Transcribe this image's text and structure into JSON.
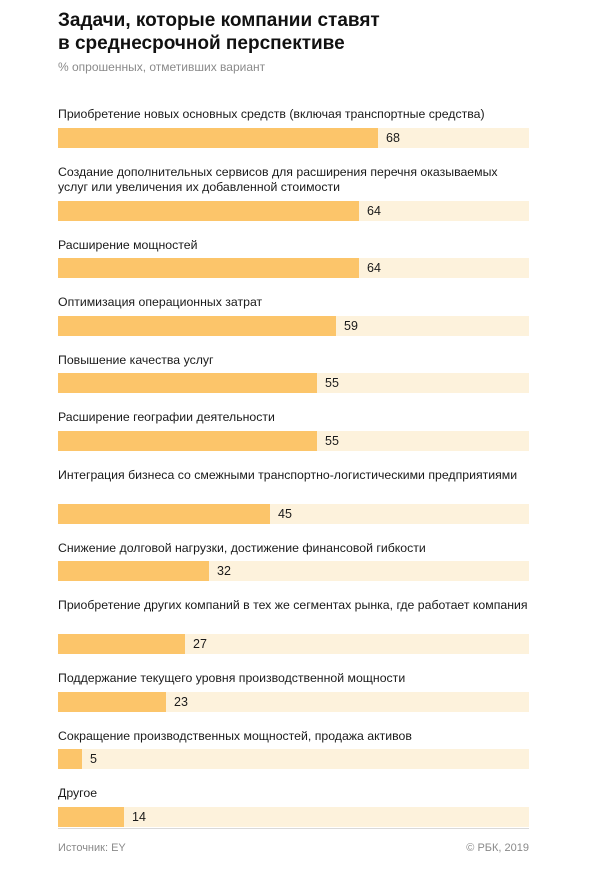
{
  "header": {
    "title_line1": "Задачи, которые компании ставят",
    "title_line2": "в среднесрочной перспективе",
    "subtitle": "% опрошенных, отметивших вариант"
  },
  "chart_data": {
    "type": "bar",
    "orientation": "horizontal",
    "title": "Задачи, которые компании ставят в среднесрочной перспективе",
    "subtitle": "% опрошенных, отметивших вариант",
    "xlim": [
      0,
      100
    ],
    "grid": false,
    "colors": {
      "bar": "#fcc56a",
      "track": "#fdf2dc"
    },
    "items": [
      {
        "label": "Приобретение новых основных средств (включая транспортные средства)",
        "lines": 1,
        "value": 68
      },
      {
        "label": "Создание дополнительных сервисов для расширения перечня оказываемых услуг или увеличения их добавленной стоимости",
        "lines": 2,
        "value": 64
      },
      {
        "label": "Расширение мощностей",
        "lines": 1,
        "value": 64
      },
      {
        "label": "Оптимизация операционных затрат",
        "lines": 1,
        "value": 59
      },
      {
        "label": "Повышение качества услуг",
        "lines": 1,
        "value": 55
      },
      {
        "label": "Расширение географии деятельности",
        "lines": 1,
        "value": 55
      },
      {
        "label": "Интеграция бизнеса со смежными транспортно-логистическими предприятиями",
        "lines": 2,
        "value": 45
      },
      {
        "label": "Снижение долговой нагрузки, достижение финансовой гибкости",
        "lines": 1,
        "value": 32
      },
      {
        "label": "Приобретение других компаний в тех же сегментах рынка, где работает компания",
        "lines": 2,
        "value": 27
      },
      {
        "label": "Поддержание текущего уровня производственной мощности",
        "lines": 1,
        "value": 23
      },
      {
        "label": "Сокращение производственных мощностей, продажа активов",
        "lines": 1,
        "value": 5
      },
      {
        "label": "Другое",
        "lines": 1,
        "value": 14
      }
    ]
  },
  "footer": {
    "source": "Источник: EY",
    "copyright": "© РБК, 2019"
  }
}
